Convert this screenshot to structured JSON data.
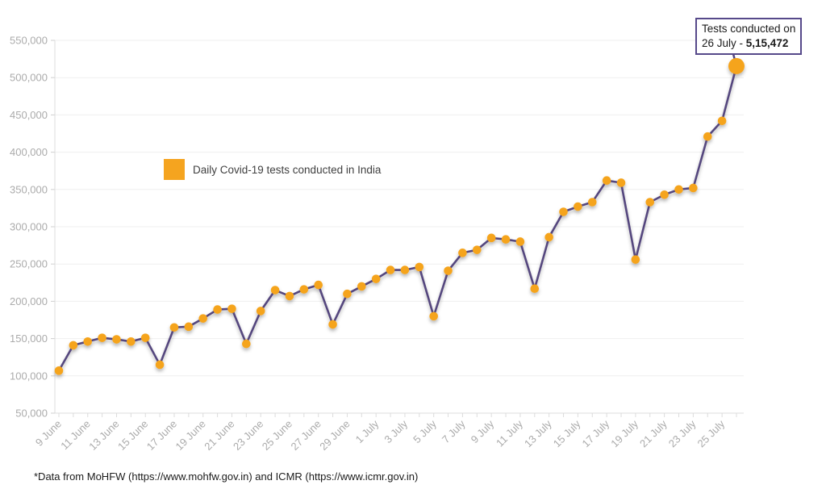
{
  "chart_data": {
    "type": "line",
    "title": "",
    "xlabel": "",
    "ylabel": "",
    "x": [
      "9 June",
      "10 June",
      "11 June",
      "12 June",
      "13 June",
      "14 June",
      "15 June",
      "16 June",
      "17 June",
      "18 June",
      "19 June",
      "20 June",
      "21 June",
      "22 June",
      "23 June",
      "24 June",
      "25 June",
      "26 June",
      "27 June",
      "28 June",
      "29 June",
      "30 June",
      "1 July",
      "2 July",
      "3 July",
      "4 July",
      "5 July",
      "6 July",
      "7 July",
      "8 July",
      "9 July",
      "10 July",
      "11 July",
      "12 July",
      "13 July",
      "14 July",
      "15 July",
      "16 July",
      "17 July",
      "18 July",
      "19 July",
      "20 July",
      "21 July",
      "22 July",
      "23 July",
      "24 July",
      "25 July",
      "26 July"
    ],
    "series": [
      {
        "name": "Daily Covid-19 tests conducted in India",
        "values": [
          107000,
          141000,
          146000,
          151000,
          149000,
          146000,
          151000,
          115000,
          165000,
          166000,
          177000,
          189000,
          190000,
          143000,
          187000,
          215000,
          207000,
          216000,
          222000,
          169000,
          210000,
          220000,
          230000,
          242000,
          242000,
          246000,
          180000,
          241000,
          265000,
          269000,
          285000,
          283000,
          280000,
          217000,
          286000,
          320000,
          327000,
          333000,
          362000,
          359000,
          256000,
          333000,
          343000,
          350000,
          352000,
          421000,
          442000,
          515472
        ]
      }
    ],
    "ylim": [
      50000,
      550000
    ],
    "ytick_step": 50000,
    "yticks": [
      "50,000",
      "100,000",
      "150,000",
      "200,000",
      "250,000",
      "300,000",
      "350,000",
      "400,000",
      "450,000",
      "500,000",
      "550,000"
    ],
    "x_label_every": 2,
    "grid": "horizontal",
    "legend_position": "inside-top-left",
    "highlight_index": 47,
    "colors": {
      "point": "#F5A41F",
      "line": "#54467E",
      "annotation_border": "#56498A",
      "grid": "#EFEFEF",
      "axis": "#DCDCDC",
      "tick_label": "#ABABAB",
      "text": "#1A1A1A"
    }
  },
  "legend": {
    "label": "Daily Covid-19 tests conducted in India"
  },
  "annotation": {
    "line1": "Tests conducted on",
    "date_label": "26 July - ",
    "value_label": "5,15,472"
  },
  "footer": {
    "note": "*Data from MoHFW (https://www.mohfw.gov.in) and ICMR (https://www.icmr.gov.in)"
  }
}
